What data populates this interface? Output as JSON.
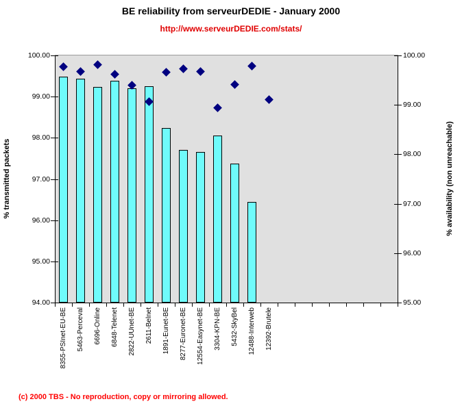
{
  "title": "BE reliability from serveurDEDIE - January 2000",
  "subtitle_url": "http://www.serveurDEDIE.com/stats/",
  "footer_note": "(c) 2000 TBS - No reproduction, copy or mirroring allowed.",
  "colors": {
    "bar_fill": "#6ffbfb",
    "bar_border": "#000000",
    "marker_fill": "#000080",
    "plot_background": "#e0e0e0",
    "url_red": "#e00000",
    "footer_red": "#ff0000"
  },
  "chart_data": {
    "type": "bar",
    "subtype": "bar-and-scatter-combo",
    "title": "BE reliability from serveurDEDIE - January 2000",
    "categories": [
      "8355-PSInet-EU-BE",
      "5463-Perceval",
      "6696-Online",
      "6848-Telenet",
      "2822-UUnet-BE",
      "2611-Belnet",
      "1891-Eunet-BE",
      "8277-Euronet-BE",
      "12554-Easynet-BE",
      "3304-KPN-BE",
      "5432-SkyBel",
      "12488-Interweb",
      "12392-Brutele"
    ],
    "series": [
      {
        "name": "% transmitted packets",
        "type": "bar",
        "axis": "left",
        "values": [
          99.48,
          99.43,
          99.24,
          99.38,
          99.2,
          99.26,
          98.24,
          97.7,
          97.65,
          98.06,
          97.37,
          96.44,
          null
        ]
      },
      {
        "name": "% availability (non unreachable)",
        "type": "scatter",
        "marker": "diamond",
        "axis": "right",
        "values": [
          99.77,
          99.68,
          99.81,
          99.62,
          99.4,
          99.07,
          99.66,
          99.73,
          99.68,
          98.94,
          99.41,
          99.79,
          99.1
        ]
      }
    ],
    "left_axis": {
      "label": "% transmitted packets",
      "min": 94.0,
      "max": 100.0,
      "step": 1.0,
      "tick_decimals": 2
    },
    "right_axis": {
      "label": "% availability (non unreachable)",
      "min": 95.0,
      "max": 100.0,
      "step": 1.0,
      "tick_decimals": 2
    },
    "x_axis": {
      "total_slots": 20,
      "used_slots": 13,
      "label_rotation_deg": -90
    },
    "grid": false,
    "legend": false
  }
}
